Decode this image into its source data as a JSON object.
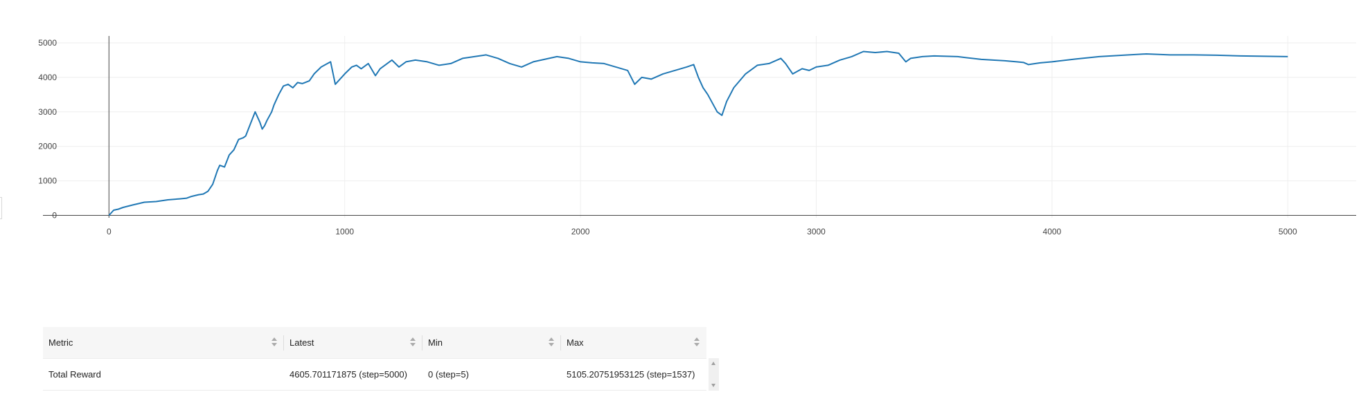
{
  "chart_data": {
    "type": "line",
    "title": "",
    "xlabel": "",
    "ylabel": "",
    "xlim": [
      -280,
      5290
    ],
    "ylim": [
      -70,
      5200
    ],
    "x_ticks": [
      0,
      1000,
      2000,
      3000,
      4000,
      5000
    ],
    "y_ticks": [
      0,
      1000,
      2000,
      3000,
      4000,
      5000
    ],
    "grid": true,
    "line_color": "#1f77b4",
    "series": [
      {
        "x": [
          0,
          20,
          40,
          60,
          100,
          150,
          200,
          250,
          300,
          330,
          350,
          380,
          400,
          420,
          440,
          460,
          470,
          490,
          510,
          530,
          550,
          570,
          580,
          600,
          620,
          640,
          650,
          660,
          670,
          690,
          700,
          720,
          740,
          760,
          780,
          800,
          820,
          850,
          870,
          900,
          940,
          960,
          980,
          1000,
          1030,
          1050,
          1070,
          1100,
          1130,
          1150,
          1170,
          1200,
          1230,
          1260,
          1300,
          1350,
          1400,
          1450,
          1500,
          1550,
          1600,
          1650,
          1700,
          1750,
          1800,
          1900,
          1950,
          2000,
          2050,
          2100,
          2150,
          2200,
          2230,
          2260,
          2300,
          2350,
          2400,
          2450,
          2480,
          2500,
          2520,
          2540,
          2560,
          2580,
          2600,
          2620,
          2650,
          2700,
          2750,
          2800,
          2850,
          2870,
          2900,
          2940,
          2970,
          3000,
          3050,
          3100,
          3150,
          3200,
          3250,
          3300,
          3350,
          3380,
          3400,
          3450,
          3500,
          3600,
          3700,
          3800,
          3850,
          3880,
          3900,
          3950,
          4000,
          4100,
          4200,
          4300,
          4400,
          4500,
          4600,
          4700,
          4800,
          4900,
          5000
        ],
        "values": [
          0,
          150,
          180,
          230,
          300,
          380,
          400,
          450,
          480,
          500,
          550,
          600,
          620,
          700,
          900,
          1300,
          1450,
          1400,
          1750,
          1900,
          2200,
          2250,
          2300,
          2650,
          3000,
          2700,
          2500,
          2600,
          2750,
          3000,
          3200,
          3500,
          3750,
          3800,
          3700,
          3850,
          3820,
          3900,
          4100,
          4300,
          4450,
          3800,
          3950,
          4100,
          4300,
          4350,
          4250,
          4400,
          4050,
          4250,
          4350,
          4500,
          4300,
          4450,
          4500,
          4450,
          4350,
          4400,
          4550,
          4600,
          4650,
          4550,
          4400,
          4300,
          4450,
          4600,
          4550,
          4450,
          4420,
          4400,
          4300,
          4200,
          3800,
          4000,
          3950,
          4100,
          4200,
          4300,
          4370,
          4000,
          3700,
          3500,
          3250,
          3000,
          2900,
          3300,
          3700,
          4100,
          4350,
          4400,
          4550,
          4400,
          4100,
          4250,
          4200,
          4300,
          4350,
          4500,
          4600,
          4750,
          4720,
          4750,
          4700,
          4450,
          4550,
          4600,
          4620,
          4600,
          4520,
          4480,
          4450,
          4430,
          4370,
          4420,
          4450,
          4530,
          4600,
          4640,
          4680,
          4650,
          4650,
          4640,
          4620,
          4610,
          4600
        ]
      }
    ]
  },
  "table": {
    "headers": [
      "Metric",
      "Latest",
      "Min",
      "Max"
    ],
    "rows": [
      [
        "Total Reward",
        "4605.701171875 (step=5000)",
        "0 (step=5)",
        "5105.20751953125 (step=1537)"
      ]
    ]
  }
}
